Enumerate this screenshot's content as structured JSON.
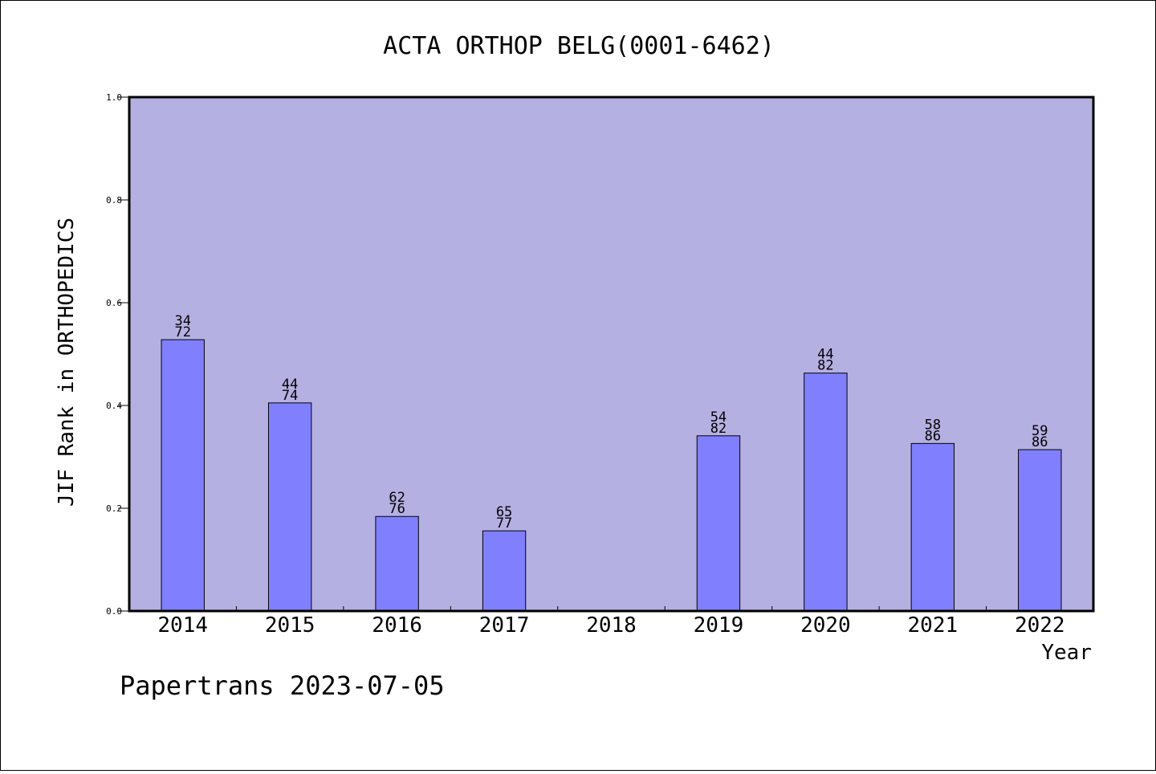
{
  "chart_data": {
    "type": "bar",
    "title": "ACTA ORTHOP BELG(0001-6462)",
    "xlabel": "Year",
    "ylabel": "JIF Rank in ORTHOPEDICS",
    "ylim": [
      0,
      1.0
    ],
    "yticks": [
      "0.0",
      "0.2",
      "0.4",
      "0.6",
      "0.8",
      "1.0"
    ],
    "categories": [
      "2014",
      "2015",
      "2016",
      "2017",
      "2018",
      "2019",
      "2020",
      "2021",
      "2022"
    ],
    "values": [
      0.528,
      0.405,
      0.184,
      0.156,
      null,
      0.341,
      0.463,
      0.326,
      0.314
    ],
    "labels": [
      [
        "34",
        "72"
      ],
      [
        "44",
        "74"
      ],
      [
        "62",
        "76"
      ],
      [
        "65",
        "77"
      ],
      null,
      [
        "54",
        "82"
      ],
      [
        "44",
        "82"
      ],
      [
        "58",
        "86"
      ],
      [
        "59",
        "86"
      ]
    ],
    "grid": false,
    "colors": {
      "plot_bg": "#b5b0e2",
      "bar": "#8080ff"
    }
  },
  "footer": {
    "text": "Papertrans 2023-07-05"
  }
}
